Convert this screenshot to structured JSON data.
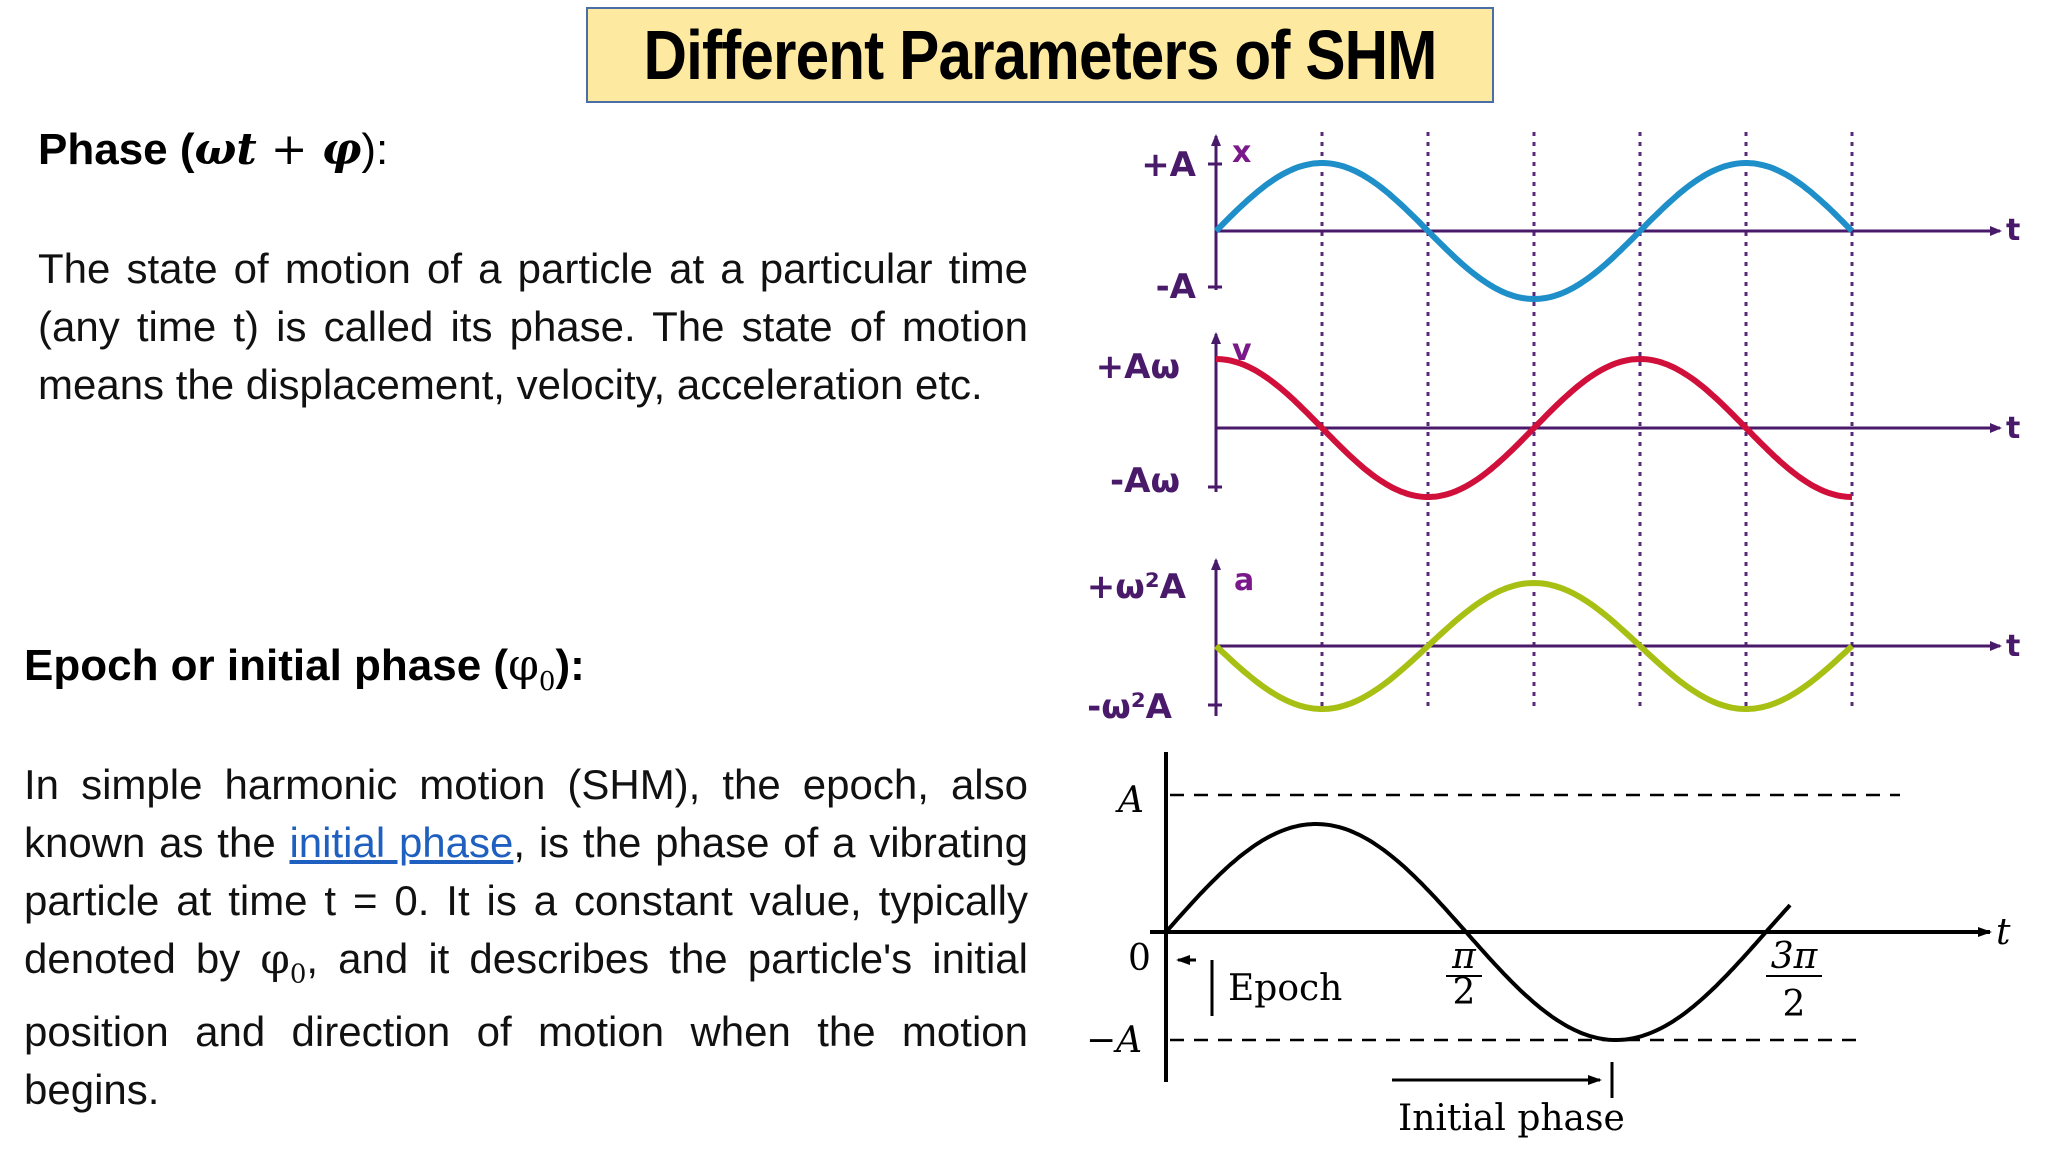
{
  "title": "Different Parameters of SHM",
  "phase": {
    "heading_prefix": "Phase (",
    "omega_t": "ωt",
    "plus": " + ",
    "phi": "φ",
    "heading_suffix": "):",
    "text": "The state of motion of a particle at a particular time (any time t) is called its phase. The state of motion means the displacement, velocity, acceleration etc."
  },
  "epoch": {
    "heading_prefix": "Epoch or initial phase (",
    "phi0": "φ",
    "sub": "0",
    "heading_suffix": "):",
    "text1": "In simple harmonic motion (SHM), the epoch, also known as the ",
    "link": "initial phase",
    "text2": ", is the phase of a vibrating particle at time t = 0. It is a constant value, typically denoted by ",
    "phi": "φ",
    "sub0": "0",
    "text3": ", and it describes the particle's initial position and direction of motion when the motion begins."
  },
  "graphs": {
    "x": {
      "axis": "x",
      "max": "+A",
      "min": "-A",
      "t": "t",
      "color": "#1e8fc8"
    },
    "v": {
      "axis": "v",
      "max": "+Aω",
      "min": "-Aω",
      "t": "t",
      "color": "#d0103a"
    },
    "a": {
      "axis": "a",
      "max": "+ω²A",
      "min": "-ω²A",
      "t": "t",
      "color": "#a8c014"
    }
  },
  "epoch_graph": {
    "A": "A",
    "neg_A": "−A",
    "zero": "0",
    "t": "t",
    "pi": "π",
    "two": "2",
    "three_pi": "3π",
    "two_b": "2",
    "epoch_label": "Epoch",
    "initial_phase_label": "Initial phase"
  },
  "colors": {
    "axis_purple": "#4a1a6a",
    "label_purple": "#7a1a8a",
    "title_bg": "#fde9a0"
  }
}
